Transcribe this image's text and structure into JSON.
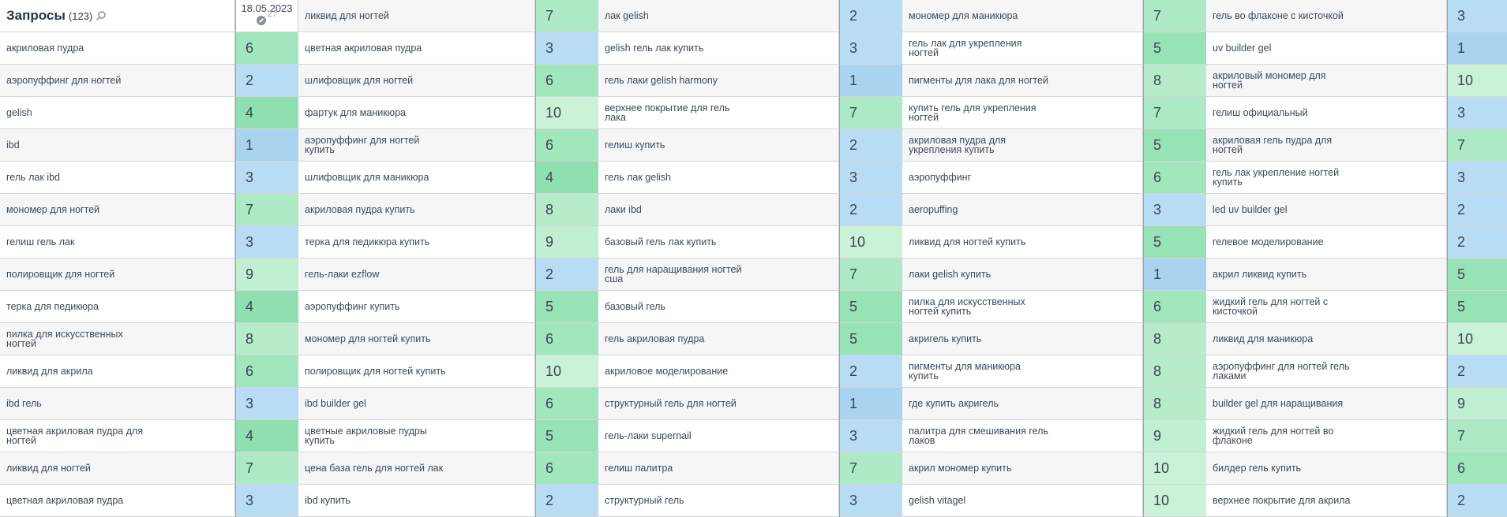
{
  "header": {
    "title": "Запросы",
    "count": "(123)",
    "date": "18.05.2023",
    "date_sub": "27"
  },
  "colors": {
    "p1": "#a9d3ee",
    "p2": "#b7dcf3",
    "p3": "#b7dcf3",
    "p4": "#8fdfb0",
    "p5": "#98e2b7",
    "p6": "#a2e6bd",
    "p7": "#ace9c4",
    "p8": "#b6ecca",
    "p9": "#c0efd1",
    "p10": "#caf2d7"
  },
  "columns": [
    {
      "rows": [
        {
          "kw": "",
          "pos": ""
        },
        {
          "kw": "акриловая пудра",
          "pos": "6"
        },
        {
          "kw": "аэропуффинг для ногтей",
          "pos": "2"
        },
        {
          "kw": "gelish",
          "pos": "4"
        },
        {
          "kw": "ibd",
          "pos": "1"
        },
        {
          "kw": "гель лак ibd",
          "pos": "3"
        },
        {
          "kw": "мономер для ногтей",
          "pos": "7"
        },
        {
          "kw": "гелиш гель лак",
          "pos": "3"
        },
        {
          "kw": "полировщик для ногтей",
          "pos": "9"
        },
        {
          "kw": "терка для педикюра",
          "pos": "4"
        },
        {
          "kw": "пилка для искусственных ногтей",
          "pos": "8"
        },
        {
          "kw": "ликвид для акрила",
          "pos": "6"
        },
        {
          "kw": "ibd гель",
          "pos": "3"
        },
        {
          "kw": "цветная акриловая пудра для ногтей",
          "pos": "4"
        },
        {
          "kw": "ликвид для ногтей",
          "pos": "7"
        },
        {
          "kw": "цветная акриловая пудра",
          "pos": "3"
        }
      ]
    },
    {
      "rows": [
        {
          "kw": "ликвид для ногтей",
          "pos": "7"
        },
        {
          "kw": "цветная акриловая пудра",
          "pos": "3"
        },
        {
          "kw": "шлифовщик для ногтей",
          "pos": "6"
        },
        {
          "kw": "фартук для маникюра",
          "pos": "10"
        },
        {
          "kw": "аэропуффинг для ногтей купить",
          "pos": "6"
        },
        {
          "kw": "шлифовщик для маникюра",
          "pos": "4"
        },
        {
          "kw": "акриловая пудра купить",
          "pos": "8"
        },
        {
          "kw": "терка для педикюра купить",
          "pos": "9"
        },
        {
          "kw": "гель-лаки ezflow",
          "pos": "2"
        },
        {
          "kw": "аэропуффинг купить",
          "pos": "5"
        },
        {
          "kw": "мономер для ногтей купить",
          "pos": "6"
        },
        {
          "kw": "полировщик для ногтей купить",
          "pos": "10"
        },
        {
          "kw": "ibd builder gel",
          "pos": "6"
        },
        {
          "kw": "цветные акриловые пудры купить",
          "pos": "5"
        },
        {
          "kw": "цена база гель для ногтей лак",
          "pos": "6"
        },
        {
          "kw": "ibd купить",
          "pos": "2"
        }
      ]
    },
    {
      "rows": [
        {
          "kw": "лак gelish",
          "pos": "2"
        },
        {
          "kw": "gelish гель лак купить",
          "pos": "3"
        },
        {
          "kw": "гель лаки gelish harmony",
          "pos": "1"
        },
        {
          "kw": "верхнее покрытие для гель лака",
          "pos": "7"
        },
        {
          "kw": "гелиш купить",
          "pos": "2"
        },
        {
          "kw": "гель лак gelish",
          "pos": "3"
        },
        {
          "kw": "лаки ibd",
          "pos": "2"
        },
        {
          "kw": "базовый гель лак купить",
          "pos": "10"
        },
        {
          "kw": "гель для наращивания ногтей сша",
          "pos": "7"
        },
        {
          "kw": "базовый гель",
          "pos": "5"
        },
        {
          "kw": "гель акриловая пудра",
          "pos": "5"
        },
        {
          "kw": "акриловое моделирование",
          "pos": "2"
        },
        {
          "kw": "структурный гель для ногтей",
          "pos": "1"
        },
        {
          "kw": "гель-лаки supernail",
          "pos": "3"
        },
        {
          "kw": "гелиш палитра",
          "pos": "7"
        },
        {
          "kw": "структурный гель",
          "pos": "3"
        }
      ]
    },
    {
      "rows": [
        {
          "kw": "мономер для маникюра",
          "pos": "7"
        },
        {
          "kw": "гель лак для укрепления ногтей",
          "pos": "5"
        },
        {
          "kw": "пигменты для лака для ногтей",
          "pos": "8"
        },
        {
          "kw": "купить гель для укрепления ногтей",
          "pos": "7"
        },
        {
          "kw": "акриловая пудра для укрепления купить",
          "pos": "5"
        },
        {
          "kw": "аэропуффинг",
          "pos": "6"
        },
        {
          "kw": "aeropuffing",
          "pos": "3"
        },
        {
          "kw": "ликвид для ногтей купить",
          "pos": "5"
        },
        {
          "kw": "лаки gelish купить",
          "pos": "1"
        },
        {
          "kw": "пилка для искусственных ногтей купить",
          "pos": "6"
        },
        {
          "kw": "акригель купить",
          "pos": "8"
        },
        {
          "kw": "пигменты для маникюра купить",
          "pos": "8"
        },
        {
          "kw": "где купить акригель",
          "pos": "8"
        },
        {
          "kw": "палитра для смешивания гель лаков",
          "pos": "9"
        },
        {
          "kw": "акрил мономер купить",
          "pos": "10"
        },
        {
          "kw": "gelish vitagel",
          "pos": "10"
        }
      ]
    },
    {
      "rows": [
        {
          "kw": "гель во флаконе с кисточкой",
          "pos": "3"
        },
        {
          "kw": "uv builder gel",
          "pos": "1"
        },
        {
          "kw": "акриловый мономер для ногтей",
          "pos": "10"
        },
        {
          "kw": "гелиш официальный",
          "pos": "3"
        },
        {
          "kw": "акриловая гель пудра для ногтей",
          "pos": "7"
        },
        {
          "kw": "гель лак укрепление ногтей купить",
          "pos": "3"
        },
        {
          "kw": "led uv builder gel",
          "pos": "2"
        },
        {
          "kw": "гелевое моделирование",
          "pos": "2"
        },
        {
          "kw": "акрил ликвид купить",
          "pos": "5"
        },
        {
          "kw": "жидкий гель для ногтей с кисточкой",
          "pos": "5"
        },
        {
          "kw": "ликвид для маникюра",
          "pos": "10"
        },
        {
          "kw": "аэропуффинг для ногтей гель лаками",
          "pos": "2"
        },
        {
          "kw": "builder gel для наращивания",
          "pos": "9"
        },
        {
          "kw": "жидкий гель для ногтей во флаконе",
          "pos": "7"
        },
        {
          "kw": "билдер гель купить",
          "pos": "6"
        },
        {
          "kw": "верхнее покрытие для акрила",
          "pos": "2"
        }
      ]
    }
  ]
}
